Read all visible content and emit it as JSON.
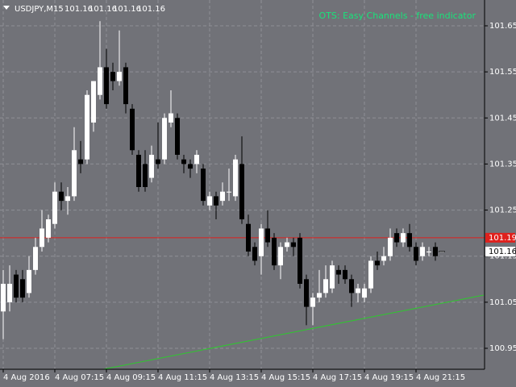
{
  "chart_data": {
    "type": "candlestick",
    "title": "USDJPY,M15",
    "header_prices": [
      101.16,
      101.16,
      101.16,
      101.16
    ],
    "indicator": "OTS: Easy Channels - free indicator",
    "indicator_color": "#18e47a",
    "categories": [
      "4 Aug 2016",
      null,
      null,
      null,
      null,
      null,
      null,
      null,
      "4 Aug 07:15",
      null,
      null,
      null,
      null,
      null,
      null,
      null,
      "4 Aug 09:15",
      null,
      null,
      null,
      null,
      null,
      null,
      null,
      "4 Aug 11:15",
      null,
      null,
      null,
      null,
      null,
      null,
      null,
      "4 Aug 13:15",
      null,
      null,
      null,
      null,
      null,
      null,
      null,
      "4 Aug 15:15",
      null,
      null,
      null,
      null,
      null,
      null,
      null,
      "4 Aug 17:15",
      null,
      null,
      null,
      null,
      null,
      null,
      null,
      "4 Aug 19:15",
      null,
      null,
      null,
      null,
      null,
      null,
      null,
      "4 Aug 21:15",
      null,
      null,
      null,
      null
    ],
    "open": [
      101.03,
      101.05,
      101.11,
      101.1,
      101.07,
      101.12,
      101.17,
      101.19,
      101.22,
      101.29,
      101.27,
      101.28,
      101.36,
      101.36,
      101.44,
      101.5,
      101.56,
      101.55,
      101.53,
      101.56,
      101.47,
      101.37,
      101.35,
      101.32,
      101.36,
      101.36,
      101.44,
      101.45,
      101.36,
      101.35,
      101.35,
      101.34,
      101.26,
      101.28,
      101.27,
      101.29,
      101.28,
      101.35,
      101.22,
      101.17,
      101.15,
      101.21,
      101.19,
      101.13,
      101.17,
      101.18,
      101.19,
      101.1,
      101.04,
      101.06,
      101.07,
      101.08,
      101.12,
      101.12,
      101.1,
      101.07,
      101.06,
      101.08,
      101.14,
      101.14,
      101.15,
      101.2,
      101.18,
      101.2,
      101.17,
      101.15,
      101.16,
      101.17,
      101.16
    ],
    "high": [
      101.12,
      101.13,
      101.12,
      101.12,
      101.15,
      101.19,
      101.25,
      101.24,
      101.31,
      101.31,
      101.3,
      101.43,
      101.4,
      101.51,
      101.53,
      101.66,
      101.6,
      101.57,
      101.64,
      101.57,
      101.48,
      101.38,
      101.38,
      101.39,
      101.44,
      101.46,
      101.51,
      101.46,
      101.37,
      101.36,
      101.38,
      101.35,
      101.29,
      101.29,
      101.31,
      101.34,
      101.37,
      101.41,
      101.24,
      101.18,
      101.22,
      101.25,
      101.2,
      101.18,
      101.19,
      101.19,
      101.2,
      101.11,
      101.07,
      101.12,
      101.13,
      101.14,
      101.13,
      101.13,
      101.11,
      101.09,
      101.09,
      101.15,
      101.16,
      101.17,
      101.21,
      101.21,
      101.21,
      101.22,
      101.18,
      101.18,
      101.17,
      101.18,
      101.16
    ],
    "low": [
      100.97,
      101.03,
      101.05,
      101.05,
      101.06,
      101.11,
      101.16,
      101.18,
      101.21,
      101.25,
      101.24,
      101.27,
      101.33,
      101.35,
      101.42,
      101.49,
      101.47,
      101.51,
      101.52,
      101.46,
      101.37,
      101.29,
      101.29,
      101.31,
      101.34,
      101.35,
      101.43,
      101.36,
      101.33,
      101.32,
      101.33,
      101.26,
      101.25,
      101.23,
      101.26,
      101.27,
      101.27,
      101.22,
      101.15,
      101.13,
      101.11,
      101.17,
      101.12,
      101.1,
      101.16,
      101.15,
      101.08,
      101.0,
      101.0,
      101.05,
      101.06,
      101.07,
      101.09,
      101.09,
      101.04,
      101.05,
      101.05,
      101.07,
      101.12,
      101.13,
      101.14,
      101.17,
      101.17,
      101.16,
      101.13,
      101.14,
      101.15,
      101.14,
      101.16
    ],
    "close": [
      101.09,
      101.09,
      101.06,
      101.06,
      101.12,
      101.17,
      101.21,
      101.23,
      101.29,
      101.27,
      101.28,
      101.38,
      101.35,
      101.5,
      101.53,
      101.56,
      101.48,
      101.53,
      101.55,
      101.48,
      101.38,
      101.3,
      101.3,
      101.37,
      101.35,
      101.45,
      101.46,
      101.37,
      101.35,
      101.34,
      101.37,
      101.27,
      101.28,
      101.26,
      101.29,
      101.29,
      101.36,
      101.23,
      101.16,
      101.14,
      101.21,
      101.18,
      101.13,
      101.17,
      101.18,
      101.17,
      101.09,
      101.04,
      101.06,
      101.07,
      101.1,
      101.13,
      101.11,
      101.1,
      101.07,
      101.08,
      101.08,
      101.14,
      101.13,
      101.15,
      101.19,
      101.18,
      101.2,
      101.17,
      101.14,
      101.17,
      101.16,
      101.15,
      101.16
    ],
    "up_color": "#ffffff",
    "down_color": "#000000",
    "ylim": [
      100.9045,
      101.706
    ],
    "yticks": [
      100.95,
      101.05,
      101.15,
      101.25,
      101.35,
      101.45,
      101.55,
      101.65
    ],
    "grid": true,
    "hline": {
      "value": 101.19,
      "color": "#e0201c"
    },
    "current_price": 101.16,
    "trendline": {
      "x": [
        15.5,
        74.5
      ],
      "y": [
        100.9045,
        101.0655
      ],
      "color": "#2ec82e"
    }
  }
}
